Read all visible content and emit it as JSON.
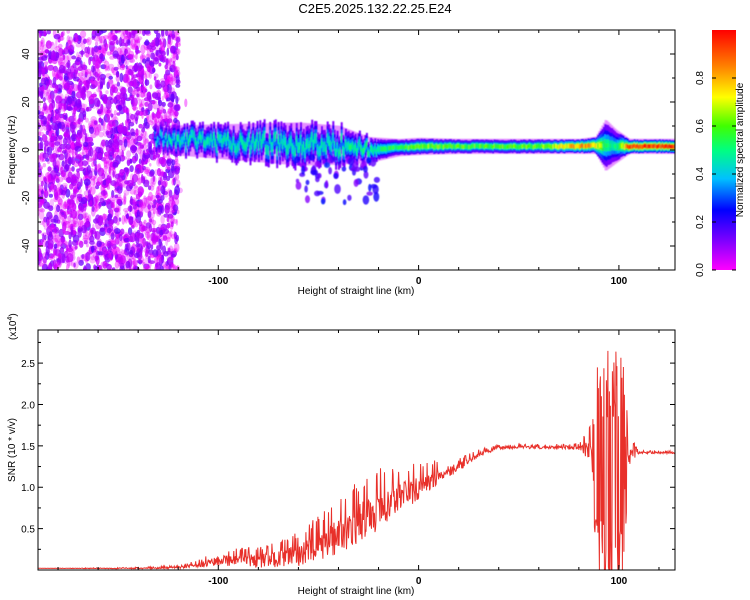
{
  "title": "C2E5.2025.132.22.25.E24",
  "colors": {
    "snr_line": "#e8302a",
    "axis": "#000000"
  },
  "chart_data": [
    {
      "type": "heatmap",
      "xlabel": "Height of straight line (km)",
      "ylabel": "Frequency (Hz)",
      "xlim": [
        -190,
        128
      ],
      "ylim": [
        -50,
        50
      ],
      "x_ticks": [
        -100,
        0,
        100
      ],
      "x_tick_labels": [
        "-100",
        "0",
        "100"
      ],
      "y_ticks": [
        -40,
        -20,
        0,
        20,
        40
      ],
      "y_tick_labels": [
        "-40",
        "-20",
        "0",
        "20",
        "40"
      ],
      "colorbar": {
        "label": "Normalized spectral amplitude",
        "range": [
          0,
          1
        ],
        "ticks": [
          0.0,
          0.2,
          0.4,
          0.6,
          0.8
        ],
        "tick_labels": [
          "0.0",
          "0.2",
          "0.4",
          "0.6",
          "0.8"
        ],
        "colormap": [
          "#ff00ff",
          "#8000ff",
          "#0000ff",
          "#00c0ff",
          "#00ff80",
          "#40ff00",
          "#ffff00",
          "#ff8000",
          "#ff0000"
        ]
      },
      "noise_region_x": [
        -190,
        -120
      ],
      "ridge": [
        {
          "x": -132,
          "f": 5.0,
          "width": 6,
          "amp": 0.35
        },
        {
          "x": -120,
          "f": 4.0,
          "width": 7,
          "amp": 0.45
        },
        {
          "x": -100,
          "f": 3.5,
          "width": 8,
          "amp": 0.45
        },
        {
          "x": -80,
          "f": 3.0,
          "width": 9,
          "amp": 0.45
        },
        {
          "x": -60,
          "f": 2.5,
          "width": 10,
          "amp": 0.45
        },
        {
          "x": -40,
          "f": 2.0,
          "width": 9,
          "amp": 0.45
        },
        {
          "x": -25,
          "f": 0.0,
          "width": 6,
          "amp": 0.5
        },
        {
          "x": -10,
          "f": 1.0,
          "width": 4,
          "amp": 0.55
        },
        {
          "x": 0,
          "f": 1.5,
          "width": 4,
          "amp": 0.65
        },
        {
          "x": 20,
          "f": 1.5,
          "width": 3.5,
          "amp": 0.6
        },
        {
          "x": 40,
          "f": 1.5,
          "width": 3.5,
          "amp": 0.6
        },
        {
          "x": 60,
          "f": 1.5,
          "width": 3.5,
          "amp": 0.62
        },
        {
          "x": 80,
          "f": 1.5,
          "width": 3.5,
          "amp": 0.85
        },
        {
          "x": 88,
          "f": 2.0,
          "width": 4,
          "amp": 0.8
        },
        {
          "x": 93,
          "f": 2.0,
          "width": 12,
          "amp": 0.5
        },
        {
          "x": 98,
          "f": 1.5,
          "width": 8,
          "amp": 0.45
        },
        {
          "x": 105,
          "f": 1.5,
          "width": 3.5,
          "amp": 0.95
        },
        {
          "x": 128,
          "f": 1.5,
          "width": 3.5,
          "amp": 0.95
        }
      ]
    },
    {
      "type": "line",
      "xlabel": "Height of straight line (km)",
      "ylabel": "SNR (10 * v/v)",
      "y_multiplier_label": "(x10",
      "y_multiplier_exp": "4",
      "xlim": [
        -190,
        128
      ],
      "ylim": [
        0,
        2.9
      ],
      "x_ticks": [
        -100,
        0,
        100
      ],
      "x_tick_labels": [
        "-100",
        "0",
        "100"
      ],
      "y_ticks": [
        0.5,
        1.0,
        1.5,
        2.0,
        2.5
      ],
      "y_tick_labels": [
        "0.5",
        "1.0",
        "1.5",
        "2.0",
        "2.5"
      ],
      "series": [
        {
          "x": [
            -190,
            -140,
            -120,
            -110,
            -100,
            -90,
            -80,
            -70,
            -60,
            -50,
            -40,
            -30,
            -20,
            -10,
            0,
            10,
            20,
            30,
            40,
            50,
            60,
            70,
            80,
            85,
            88,
            90,
            92,
            95,
            97,
            100,
            102,
            105,
            110,
            120,
            128
          ],
          "y": [
            0.02,
            0.02,
            0.03,
            0.06,
            0.12,
            0.13,
            0.12,
            0.15,
            0.2,
            0.3,
            0.45,
            0.6,
            0.75,
            0.9,
            1.0,
            1.15,
            1.25,
            1.4,
            1.48,
            1.49,
            1.48,
            1.49,
            1.48,
            1.47,
            1.4,
            1.2,
            1.1,
            1.0,
            1.1,
            1.2,
            1.25,
            1.4,
            1.42,
            1.42,
            1.42
          ],
          "noise": [
            0.0,
            0.01,
            0.02,
            0.05,
            0.1,
            0.12,
            0.14,
            0.16,
            0.22,
            0.3,
            0.35,
            0.4,
            0.4,
            0.3,
            0.25,
            0.15,
            0.08,
            0.05,
            0.03,
            0.03,
            0.03,
            0.03,
            0.04,
            0.2,
            0.8,
            1.2,
            1.35,
            1.4,
            1.3,
            1.25,
            1.1,
            0.2,
            0.02,
            0.02,
            0.02
          ]
        }
      ]
    }
  ]
}
